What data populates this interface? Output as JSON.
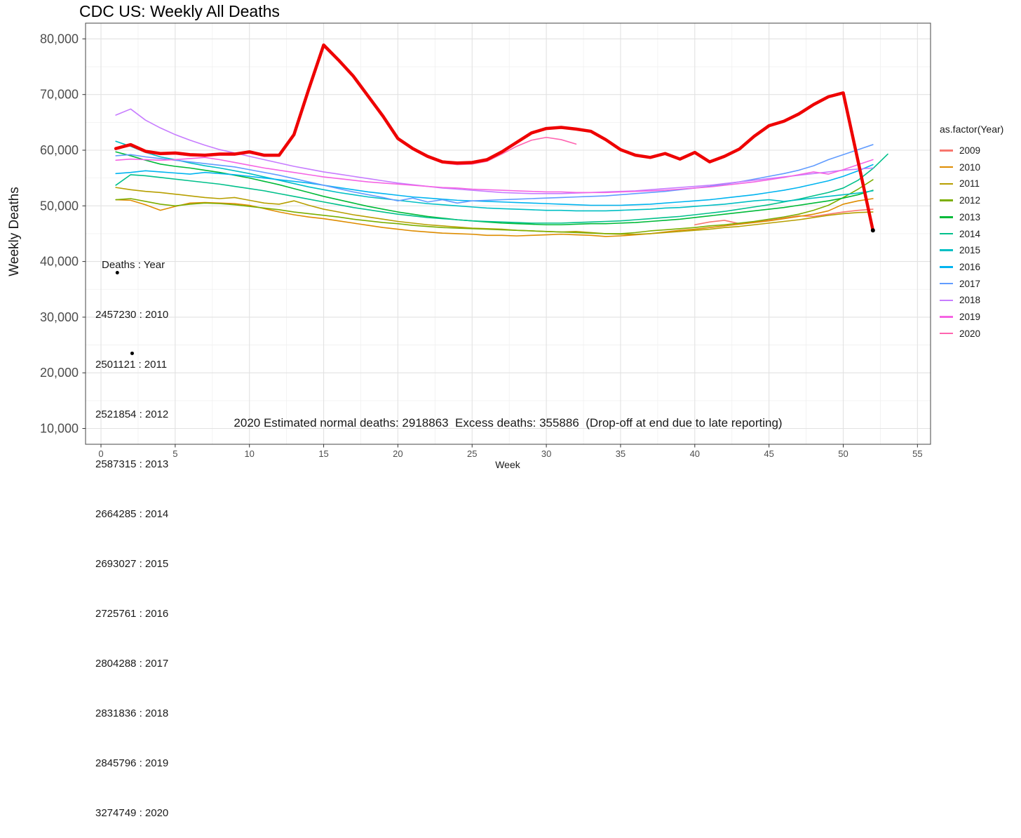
{
  "title": "CDC US: Weekly All Deaths",
  "x_axis": {
    "label": "Week",
    "tick_values": [
      0,
      5,
      10,
      15,
      20,
      25,
      30,
      35,
      40,
      45,
      50,
      55
    ]
  },
  "y_axis": {
    "label": "Weekly Deaths",
    "tick_values": [
      10000,
      20000,
      30000,
      40000,
      50000,
      60000,
      70000,
      80000
    ],
    "tick_labels": [
      "10,000",
      "20,000",
      "30,000",
      "40,000",
      "50,000",
      "60,000",
      "70,000",
      "80,000"
    ]
  },
  "legend": {
    "title": "as.factor(Year)",
    "entries": [
      {
        "label": "2009",
        "color": "#F8766D"
      },
      {
        "label": "2010",
        "color": "#DE8C00"
      },
      {
        "label": "2011",
        "color": "#B79F00"
      },
      {
        "label": "2012",
        "color": "#7CAE00"
      },
      {
        "label": "2013",
        "color": "#00BA38"
      },
      {
        "label": "2014",
        "color": "#00C08B"
      },
      {
        "label": "2015",
        "color": "#00BFC4"
      },
      {
        "label": "2016",
        "color": "#00B4F0"
      },
      {
        "label": "2017",
        "color": "#619CFF"
      },
      {
        "label": "2018",
        "color": "#C77CFF"
      },
      {
        "label": "2019",
        "color": "#F564E3"
      },
      {
        "label": "2020",
        "color": "#FF64B0"
      }
    ]
  },
  "annotations": {
    "deaths_by_year": {
      "lines": [
        "Deaths : Year",
        "2457230 : 2010",
        "2501121 : 2011",
        "2521854 : 2012",
        "2587315 : 2013",
        "2664285 : 2014",
        "2693027 : 2015",
        "2725761 : 2016",
        "2804288 : 2017",
        "2831836 : 2018",
        "2845796 : 2019",
        "3274749 : 2020"
      ]
    },
    "bottom": "2020 Estimated normal deaths: 2918863  Excess deaths: 355886  (Drop-off at end due to late reporting)"
  },
  "chart_data": {
    "type": "line",
    "title": "CDC US: Weekly All Deaths",
    "xlabel": "Week",
    "ylabel": "Weekly Deaths",
    "xlim": [
      -1,
      56.5
    ],
    "ylim": [
      7000,
      82500
    ],
    "x_ticks": [
      0,
      5,
      10,
      15,
      20,
      25,
      30,
      35,
      40,
      45,
      50,
      55
    ],
    "y_ticks": [
      10000,
      20000,
      30000,
      40000,
      50000,
      60000,
      70000,
      80000
    ],
    "grid": true,
    "legend_position": "right",
    "series": [
      {
        "name": "2009",
        "color": "#F8766D",
        "width": 1.6,
        "start_week": 40,
        "values": [
          46600,
          47100,
          47400,
          46800,
          47100,
          47400,
          47800,
          48200,
          48100,
          48500,
          48900,
          49200,
          49400
        ]
      },
      {
        "name": "2010",
        "color": "#DE8C00",
        "width": 1.6,
        "start_week": 1,
        "values": [
          51100,
          51000,
          50200,
          49200,
          49900,
          50500,
          50600,
          50500,
          50400,
          50100,
          49500,
          48900,
          48400,
          48000,
          47700,
          47300,
          46900,
          46500,
          46100,
          45800,
          45500,
          45300,
          45100,
          45000,
          44900,
          44700,
          44700,
          44600,
          44700,
          44800,
          44900,
          44800,
          44700,
          44500,
          44600,
          44800,
          45000,
          45300,
          45600,
          45800,
          46100,
          46400,
          46700,
          47000,
          47300,
          47700,
          48100,
          48500,
          49100,
          50300,
          50900,
          51300
        ]
      },
      {
        "name": "2011",
        "color": "#B79F00",
        "width": 1.6,
        "start_week": 1,
        "values": [
          53300,
          52900,
          52600,
          52400,
          52100,
          51800,
          51500,
          51300,
          51500,
          51000,
          50500,
          50300,
          50900,
          50100,
          49400,
          48900,
          48400,
          48000,
          47600,
          47200,
          46900,
          46600,
          46400,
          46200,
          46000,
          45900,
          45800,
          45600,
          45500,
          45400,
          45300,
          45400,
          45200,
          45000,
          44900,
          44900,
          45000,
          45200,
          45400,
          45600,
          45800,
          46100,
          46300,
          46600,
          46900,
          47200,
          47500,
          47900,
          48300,
          48600,
          48800,
          48900
        ]
      },
      {
        "name": "2012",
        "color": "#7CAE00",
        "width": 1.6,
        "start_week": 1,
        "values": [
          51100,
          51300,
          50800,
          50300,
          50000,
          50300,
          50500,
          50400,
          50200,
          49900,
          49600,
          49300,
          48900,
          48600,
          48300,
          48000,
          47600,
          47300,
          47000,
          46800,
          46500,
          46300,
          46100,
          46000,
          45900,
          45800,
          45700,
          45600,
          45500,
          45400,
          45300,
          45200,
          45100,
          45000,
          45000,
          45200,
          45500,
          45700,
          45900,
          46100,
          46400,
          46600,
          46900,
          47200,
          47600,
          48000,
          48500,
          49200,
          50100,
          51500,
          53000,
          54700
        ]
      },
      {
        "name": "2013",
        "color": "#00BA38",
        "width": 1.6,
        "start_week": 1,
        "values": [
          59700,
          59000,
          58200,
          57500,
          57100,
          56800,
          56400,
          56000,
          55500,
          55000,
          54400,
          53800,
          53100,
          52400,
          51700,
          51100,
          50500,
          49900,
          49400,
          48900,
          48500,
          48100,
          47800,
          47500,
          47300,
          47100,
          46900,
          46800,
          46700,
          46600,
          46600,
          46700,
          46800,
          46800,
          46900,
          47000,
          47200,
          47400,
          47600,
          47900,
          48200,
          48500,
          48800,
          49100,
          49400,
          49700,
          50100,
          50500,
          50900,
          51400,
          52000,
          52800
        ]
      },
      {
        "name": "2014",
        "color": "#00C08B",
        "width": 1.6,
        "start_week": 1,
        "values": [
          53700,
          55600,
          55400,
          55100,
          54800,
          54500,
          54200,
          53900,
          53500,
          53100,
          52700,
          52200,
          51700,
          51200,
          50700,
          50200,
          49700,
          49300,
          48900,
          48500,
          48200,
          47900,
          47700,
          47500,
          47300,
          47200,
          47100,
          47000,
          46900,
          46900,
          46900,
          47000,
          47100,
          47200,
          47300,
          47500,
          47700,
          47900,
          48100,
          48400,
          48700,
          49000,
          49400,
          49800,
          50200,
          50700,
          51200,
          51800,
          52400,
          53200,
          54600,
          56700,
          59300
        ]
      },
      {
        "name": "2015",
        "color": "#00BFC4",
        "width": 1.6,
        "start_week": 1,
        "values": [
          61600,
          60700,
          59600,
          58800,
          58300,
          57700,
          57200,
          56800,
          56300,
          55800,
          55200,
          54600,
          54000,
          53400,
          52900,
          52400,
          52000,
          51600,
          51300,
          51000,
          50700,
          50400,
          50200,
          50000,
          49800,
          49600,
          49500,
          49400,
          49300,
          49200,
          49200,
          49100,
          49100,
          49100,
          49200,
          49300,
          49400,
          49600,
          49700,
          49900,
          50100,
          50300,
          50600,
          50900,
          51100,
          50800,
          51100,
          51400,
          51700,
          52000,
          52300,
          52700
        ]
      },
      {
        "name": "2016",
        "color": "#00B4F0",
        "width": 1.6,
        "start_week": 1,
        "values": [
          55800,
          56000,
          56300,
          56100,
          55900,
          55700,
          56000,
          55800,
          55600,
          55300,
          55000,
          54700,
          54400,
          54100,
          53700,
          53300,
          52900,
          52500,
          52200,
          51900,
          51600,
          51400,
          51200,
          51000,
          50900,
          50800,
          50700,
          50600,
          50500,
          50400,
          50300,
          50200,
          50100,
          50100,
          50100,
          50200,
          50300,
          50500,
          50700,
          50900,
          51100,
          51400,
          51700,
          52000,
          52400,
          52800,
          53300,
          53900,
          54500,
          55300,
          56300,
          57400
        ]
      },
      {
        "name": "2017",
        "color": "#619CFF",
        "width": 1.6,
        "start_week": 1,
        "values": [
          59000,
          59200,
          58800,
          58500,
          58200,
          57900,
          57600,
          57300,
          57000,
          56500,
          56000,
          55500,
          54900,
          54300,
          53700,
          53100,
          52500,
          52000,
          51500,
          50900,
          51400,
          50700,
          51100,
          50500,
          50900,
          51000,
          51100,
          51200,
          51300,
          51400,
          51500,
          51600,
          51700,
          51800,
          52000,
          52200,
          52400,
          52600,
          52900,
          53200,
          53500,
          53900,
          54300,
          54800,
          55300,
          55800,
          56400,
          57200,
          58300,
          59200,
          60100,
          61000
        ]
      },
      {
        "name": "2018",
        "color": "#C77CFF",
        "width": 1.6,
        "start_week": 1,
        "values": [
          66300,
          67400,
          65400,
          64000,
          62800,
          61800,
          60900,
          60100,
          59500,
          58900,
          58300,
          57700,
          57100,
          56600,
          56100,
          55700,
          55300,
          54900,
          54500,
          54100,
          53800,
          53500,
          53200,
          53000,
          52800,
          52600,
          52400,
          52300,
          52200,
          52200,
          52200,
          52300,
          52400,
          52500,
          52600,
          52700,
          52900,
          53100,
          53300,
          53500,
          53700,
          54000,
          54300,
          54600,
          54900,
          55200,
          55500,
          55800,
          56100,
          56400,
          56600,
          56800
        ]
      },
      {
        "name": "2019",
        "color": "#F564E3",
        "width": 1.6,
        "start_week": 1,
        "values": [
          58200,
          58400,
          58300,
          58200,
          58300,
          58500,
          58700,
          58300,
          57800,
          57300,
          56800,
          56400,
          56000,
          55600,
          55200,
          54900,
          54600,
          54300,
          54100,
          53900,
          53700,
          53500,
          53300,
          53200,
          53000,
          52900,
          52800,
          52700,
          52600,
          52500,
          52500,
          52400,
          52400,
          52400,
          52500,
          52600,
          52700,
          52800,
          53000,
          53200,
          53400,
          53700,
          54000,
          54300,
          54700,
          55100,
          55600,
          56100,
          55700,
          56500,
          57400,
          58300
        ]
      },
      {
        "name": "2020",
        "color": "#FF64B0",
        "width": 1.6,
        "start_week": 1,
        "values": [
          60200,
          60800,
          59600,
          59200,
          59300,
          59000,
          58900,
          59100,
          59100,
          59500,
          58900,
          58900,
          62600,
          70800,
          78600,
          76000,
          73100,
          69500,
          65900,
          61900,
          60100,
          58700,
          57700,
          57400,
          57500,
          58000,
          59300,
          60700,
          61800,
          62300,
          61900,
          61100
        ]
      },
      {
        "name": "2020-thick-red-overlay",
        "color": "#EE0000",
        "width": 4.5,
        "start_week": 1,
        "values": [
          60300,
          61000,
          59800,
          59400,
          59500,
          59200,
          59100,
          59300,
          59300,
          59700,
          59100,
          59100,
          62800,
          71000,
          78900,
          76200,
          73300,
          69700,
          66100,
          62100,
          60300,
          58900,
          57900,
          57700,
          57800,
          58300,
          59700,
          61400,
          63100,
          63900,
          64100,
          63800,
          63400,
          61900,
          60100,
          59100,
          58700,
          59400,
          58400,
          59600,
          57900,
          58900,
          60200,
          62500,
          64400,
          65200,
          66500,
          68200,
          69600,
          70300,
          58000,
          45600
        ]
      }
    ],
    "points": [
      {
        "week": 1.1,
        "value": 38000,
        "r": 2.5
      },
      {
        "week": 2.1,
        "value": 23500,
        "r": 2.5
      },
      {
        "week": 52,
        "value": 45600,
        "r": 3
      }
    ]
  }
}
